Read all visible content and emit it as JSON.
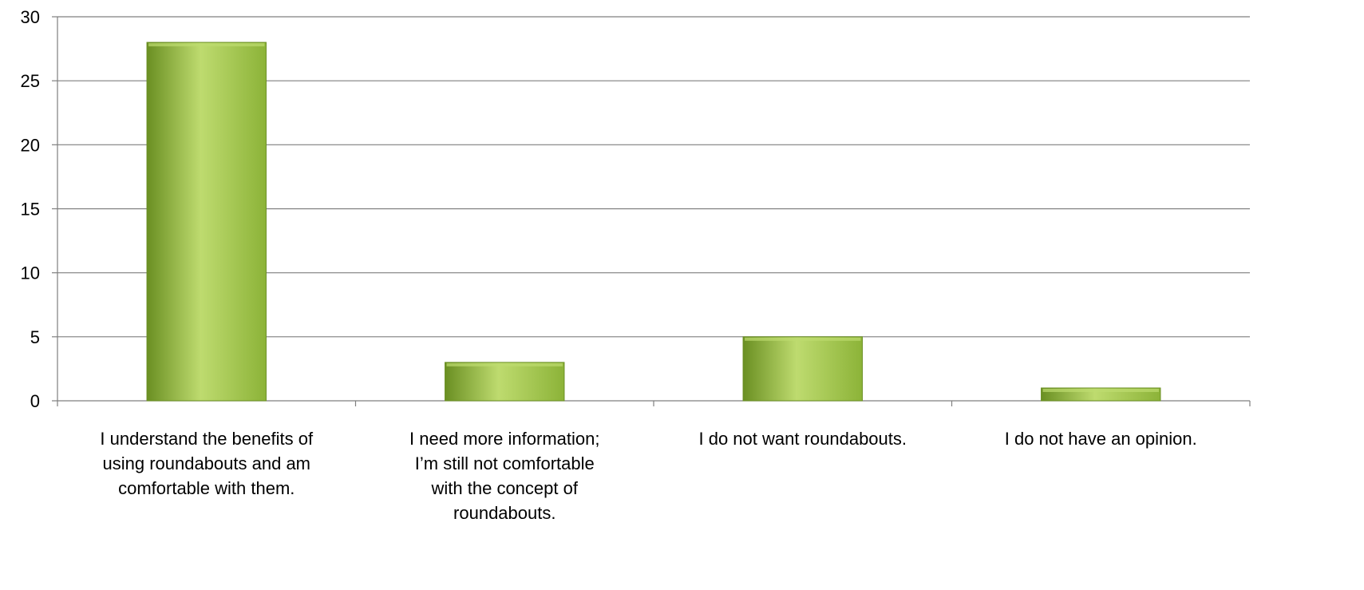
{
  "chart_data": {
    "type": "bar",
    "categories": [
      [
        "I understand the benefits of",
        "using roundabouts and am",
        "comfortable with them."
      ],
      [
        "I need more information;",
        "I’m still not comfortable",
        "with the concept of",
        "roundabouts."
      ],
      [
        "I do not want roundabouts."
      ],
      [
        "I do not have an opinion."
      ]
    ],
    "values": [
      28,
      3,
      5,
      1
    ],
    "ylim": [
      0,
      30
    ],
    "yticks": [
      0,
      5,
      10,
      15,
      20,
      25,
      30
    ],
    "grid": true,
    "bar_color": "#8cb338",
    "bar_color_light": "#bedb6f",
    "bar_color_dark": "#6a8f22"
  }
}
